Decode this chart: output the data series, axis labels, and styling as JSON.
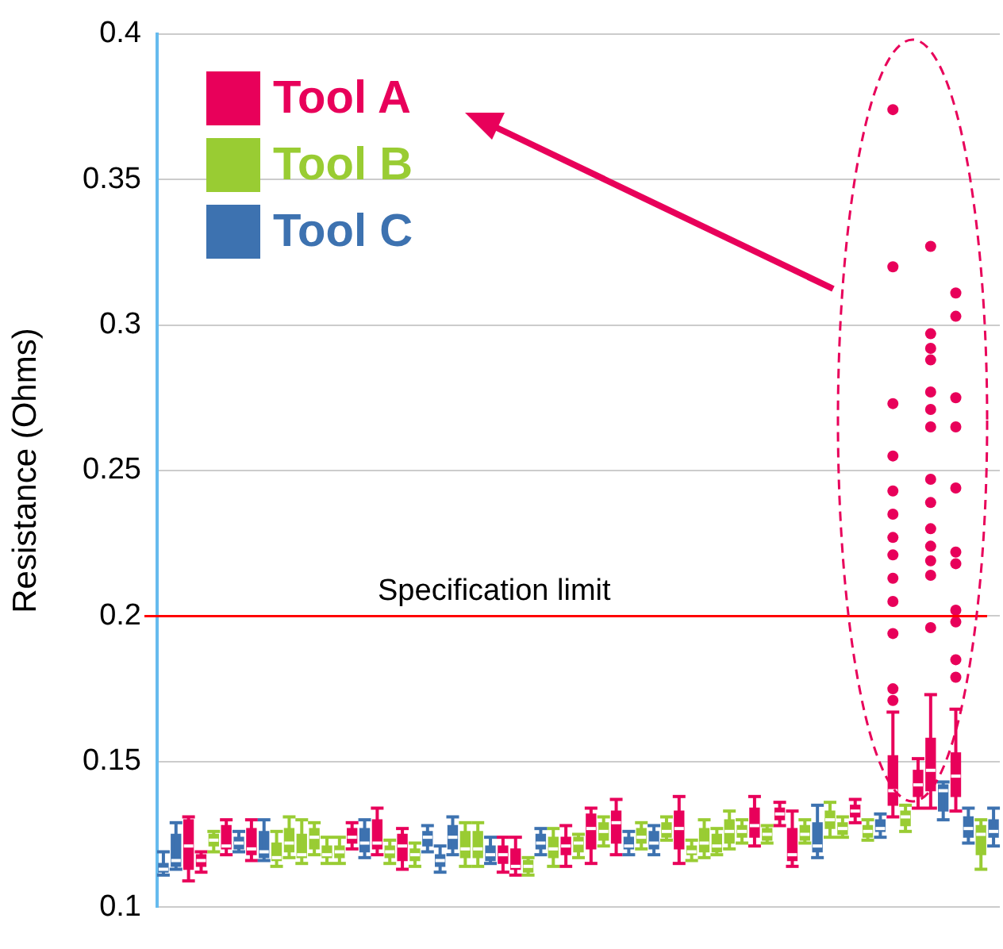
{
  "chart_data": {
    "type": "box",
    "ylabel": "Resistance (Ohms)",
    "ylim": [
      0.1,
      0.4
    ],
    "yticks": [
      0.1,
      0.15,
      0.2,
      0.25,
      0.3,
      0.35,
      0.4
    ],
    "grid": "y",
    "legend": "top left",
    "categories": [
      null,
      null,
      null,
      null,
      null,
      null,
      null,
      null,
      null,
      null,
      null,
      null,
      null,
      null,
      null,
      null,
      null,
      null,
      null,
      null,
      null,
      null,
      null,
      null,
      null,
      null,
      null,
      null,
      null,
      null,
      null,
      null,
      null,
      null,
      null,
      null,
      null,
      null,
      null,
      null,
      null,
      null,
      null,
      null,
      null,
      null,
      null,
      null,
      null,
      null,
      null,
      null,
      null,
      null,
      null,
      null,
      null,
      null,
      null,
      null,
      null,
      null,
      null,
      null,
      null,
      null,
      null
    ],
    "series": [
      {
        "name": "Tool A",
        "color": "#e8005a",
        "boxes": [
          null,
          null,
          {
            "low": 0.109,
            "q1": 0.113,
            "median": 0.121,
            "q3": 0.13,
            "high": 0.131
          },
          {
            "low": 0.112,
            "q1": 0.114,
            "median": 0.116,
            "q3": 0.118,
            "high": 0.119
          },
          null,
          {
            "low": 0.118,
            "q1": 0.12,
            "median": 0.121,
            "q3": 0.128,
            "high": 0.13
          },
          null,
          {
            "low": 0.116,
            "q1": 0.118,
            "median": 0.12,
            "q3": 0.127,
            "high": 0.13
          },
          null,
          null,
          null,
          null,
          null,
          null,
          null,
          {
            "low": 0.12,
            "q1": 0.122,
            "median": 0.124,
            "q3": 0.127,
            "high": 0.129
          },
          null,
          {
            "low": 0.118,
            "q1": 0.12,
            "median": 0.122,
            "q3": 0.13,
            "high": 0.134
          },
          null,
          {
            "low": 0.113,
            "q1": 0.116,
            "median": 0.121,
            "q3": 0.125,
            "high": 0.127
          },
          null,
          null,
          null,
          null,
          null,
          null,
          null,
          {
            "low": 0.112,
            "q1": 0.115,
            "median": 0.118,
            "q3": 0.121,
            "high": 0.124
          },
          {
            "low": 0.111,
            "q1": 0.113,
            "median": 0.114,
            "q3": 0.12,
            "high": 0.124
          },
          null,
          null,
          null,
          {
            "low": 0.114,
            "q1": 0.118,
            "median": 0.121,
            "q3": 0.124,
            "high": 0.128
          },
          null,
          {
            "low": 0.115,
            "q1": 0.12,
            "median": 0.127,
            "q3": 0.132,
            "high": 0.134
          },
          null,
          {
            "low": 0.118,
            "q1": 0.122,
            "median": 0.129,
            "q3": 0.133,
            "high": 0.137
          },
          null,
          null,
          null,
          null,
          {
            "low": 0.115,
            "q1": 0.12,
            "median": 0.127,
            "q3": 0.133,
            "high": 0.138
          },
          null,
          null,
          null,
          null,
          null,
          {
            "low": 0.121,
            "q1": 0.124,
            "median": 0.128,
            "q3": 0.134,
            "high": 0.138
          },
          null,
          {
            "low": 0.128,
            "q1": 0.13,
            "median": 0.132,
            "q3": 0.134,
            "high": 0.136
          },
          {
            "low": 0.114,
            "q1": 0.116,
            "median": 0.118,
            "q3": 0.127,
            "high": 0.133
          },
          null,
          null,
          null,
          null,
          {
            "low": 0.129,
            "q1": 0.131,
            "median": 0.133,
            "q3": 0.135,
            "high": 0.137
          },
          null,
          null,
          {
            "low": 0.131,
            "q1": 0.135,
            "median": 0.14,
            "q3": 0.152,
            "high": 0.167,
            "outliers": [
              0.374,
              0.32,
              0.273,
              0.255,
              0.243,
              0.235,
              0.227,
              0.221,
              0.213,
              0.205,
              0.194,
              0.175,
              0.171
            ]
          },
          null,
          {
            "low": 0.134,
            "q1": 0.138,
            "median": 0.142,
            "q3": 0.147,
            "high": 0.151
          },
          {
            "low": 0.134,
            "q1": 0.14,
            "median": 0.147,
            "q3": 0.158,
            "high": 0.173,
            "outliers": [
              0.327,
              0.297,
              0.292,
              0.288,
              0.277,
              0.271,
              0.265,
              0.247,
              0.239,
              0.23,
              0.224,
              0.219,
              0.214,
              0.196
            ]
          },
          null,
          {
            "low": 0.133,
            "q1": 0.138,
            "median": 0.145,
            "q3": 0.153,
            "high": 0.168,
            "outliers": [
              0.311,
              0.303,
              0.275,
              0.265,
              0.244,
              0.222,
              0.218,
              0.202,
              0.198,
              0.185,
              0.179
            ]
          },
          null,
          null,
          null
        ]
      },
      {
        "name": "Tool B",
        "color": "#99cc33",
        "boxes": [
          null,
          null,
          null,
          null,
          {
            "low": 0.119,
            "q1": 0.121,
            "median": 0.123,
            "q3": 0.125,
            "high": 0.126
          },
          null,
          null,
          null,
          null,
          {
            "low": 0.114,
            "q1": 0.116,
            "median": 0.117,
            "q3": 0.122,
            "high": 0.126
          },
          {
            "low": 0.117,
            "q1": 0.119,
            "median": 0.122,
            "q3": 0.127,
            "high": 0.131
          },
          {
            "low": 0.115,
            "q1": 0.117,
            "median": 0.118,
            "q3": 0.125,
            "high": 0.13
          },
          {
            "low": 0.118,
            "q1": 0.12,
            "median": 0.124,
            "q3": 0.127,
            "high": 0.129
          },
          {
            "low": 0.115,
            "q1": 0.117,
            "median": 0.118,
            "q3": 0.121,
            "high": 0.124
          },
          {
            "low": 0.115,
            "q1": 0.117,
            "median": 0.119,
            "q3": 0.121,
            "high": 0.124
          },
          null,
          null,
          null,
          {
            "low": 0.115,
            "q1": 0.117,
            "median": 0.119,
            "q3": 0.121,
            "high": 0.123
          },
          null,
          {
            "low": 0.114,
            "q1": 0.116,
            "median": 0.118,
            "q3": 0.12,
            "high": 0.122
          },
          null,
          null,
          null,
          {
            "low": 0.114,
            "q1": 0.117,
            "median": 0.12,
            "q3": 0.126,
            "high": 0.129
          },
          {
            "low": 0.114,
            "q1": 0.117,
            "median": 0.12,
            "q3": 0.126,
            "high": 0.129
          },
          null,
          null,
          null,
          {
            "low": 0.111,
            "q1": 0.112,
            "median": 0.114,
            "q3": 0.116,
            "high": 0.117
          },
          null,
          {
            "low": 0.114,
            "q1": 0.117,
            "median": 0.12,
            "q3": 0.124,
            "high": 0.127
          },
          null,
          {
            "low": 0.117,
            "q1": 0.119,
            "median": 0.122,
            "q3": 0.124,
            "high": 0.125
          },
          null,
          {
            "low": 0.121,
            "q1": 0.123,
            "median": 0.126,
            "q3": 0.129,
            "high": 0.131
          },
          null,
          null,
          {
            "low": 0.12,
            "q1": 0.122,
            "median": 0.124,
            "q3": 0.127,
            "high": 0.129
          },
          null,
          {
            "low": 0.123,
            "q1": 0.124,
            "median": 0.126,
            "q3": 0.129,
            "high": 0.131
          },
          null,
          {
            "low": 0.116,
            "q1": 0.118,
            "median": 0.119,
            "q3": 0.121,
            "high": 0.123
          },
          {
            "low": 0.117,
            "q1": 0.119,
            "median": 0.122,
            "q3": 0.127,
            "high": 0.13
          },
          {
            "low": 0.118,
            "q1": 0.119,
            "median": 0.121,
            "q3": 0.125,
            "high": 0.127
          },
          {
            "low": 0.12,
            "q1": 0.122,
            "median": 0.126,
            "q3": 0.13,
            "high": 0.133
          },
          {
            "low": 0.122,
            "q1": 0.124,
            "median": 0.126,
            "q3": 0.128,
            "high": 0.13
          },
          null,
          {
            "low": 0.122,
            "q1": 0.123,
            "median": 0.125,
            "q3": 0.127,
            "high": 0.128
          },
          null,
          null,
          {
            "low": 0.122,
            "q1": 0.123,
            "median": 0.125,
            "q3": 0.128,
            "high": 0.13
          },
          null,
          {
            "low": 0.124,
            "q1": 0.127,
            "median": 0.13,
            "q3": 0.133,
            "high": 0.136
          },
          {
            "low": 0.124,
            "q1": 0.125,
            "median": 0.127,
            "q3": 0.129,
            "high": 0.131
          },
          null,
          {
            "low": 0.123,
            "q1": 0.124,
            "median": 0.126,
            "q3": 0.128,
            "high": 0.13
          },
          null,
          null,
          {
            "low": 0.126,
            "q1": 0.128,
            "median": 0.131,
            "q3": 0.133,
            "high": 0.135
          },
          null,
          null,
          null,
          null,
          null,
          {
            "low": 0.113,
            "q1": 0.118,
            "median": 0.125,
            "q3": 0.128,
            "high": 0.13
          },
          null
        ]
      },
      {
        "name": "Tool C",
        "color": "#3d72b0",
        "boxes": [
          {
            "low": 0.111,
            "q1": 0.112,
            "median": 0.113,
            "q3": 0.115,
            "high": 0.119
          },
          {
            "low": 0.113,
            "q1": 0.114,
            "median": 0.116,
            "q3": 0.125,
            "high": 0.129
          },
          null,
          null,
          null,
          null,
          {
            "low": 0.119,
            "q1": 0.12,
            "median": 0.122,
            "q3": 0.124,
            "high": 0.126
          },
          null,
          {
            "low": 0.116,
            "q1": 0.117,
            "median": 0.119,
            "q3": 0.126,
            "high": 0.13
          },
          null,
          null,
          null,
          null,
          null,
          null,
          null,
          {
            "low": 0.117,
            "q1": 0.119,
            "median": 0.122,
            "q3": 0.127,
            "high": 0.13
          },
          null,
          null,
          null,
          null,
          {
            "low": 0.119,
            "q1": 0.121,
            "median": 0.124,
            "q3": 0.126,
            "high": 0.128
          },
          {
            "low": 0.112,
            "q1": 0.114,
            "median": 0.116,
            "q3": 0.118,
            "high": 0.121
          },
          {
            "low": 0.118,
            "q1": 0.12,
            "median": 0.124,
            "q3": 0.128,
            "high": 0.131
          },
          null,
          null,
          {
            "low": 0.115,
            "q1": 0.116,
            "median": 0.118,
            "q3": 0.121,
            "high": 0.124
          },
          null,
          null,
          null,
          {
            "low": 0.118,
            "q1": 0.12,
            "median": 0.122,
            "q3": 0.125,
            "high": 0.127
          },
          null,
          null,
          null,
          null,
          null,
          null,
          {
            "low": 0.118,
            "q1": 0.12,
            "median": 0.121,
            "q3": 0.124,
            "high": 0.126
          },
          null,
          {
            "low": 0.118,
            "q1": 0.12,
            "median": 0.122,
            "q3": 0.126,
            "high": 0.128
          },
          null,
          null,
          null,
          null,
          null,
          null,
          null,
          null,
          null,
          null,
          null,
          null,
          {
            "low": 0.117,
            "q1": 0.119,
            "median": 0.121,
            "q3": 0.129,
            "high": 0.135
          },
          null,
          null,
          null,
          null,
          {
            "low": 0.124,
            "q1": 0.126,
            "median": 0.127,
            "q3": 0.13,
            "high": 0.132
          },
          null,
          null,
          null,
          null,
          {
            "low": 0.13,
            "q1": 0.133,
            "median": 0.14,
            "q3": 0.142,
            "high": 0.143
          },
          null,
          {
            "low": 0.122,
            "q1": 0.124,
            "median": 0.127,
            "q3": 0.131,
            "high": 0.134
          },
          null,
          {
            "low": 0.121,
            "q1": 0.124,
            "median": 0.126,
            "q3": 0.13,
            "high": 0.134
          }
        ]
      }
    ],
    "ref_lines": [
      {
        "axis": "y",
        "value": 0.2,
        "label": "Specification limit",
        "color": "#ff0000"
      }
    ]
  }
}
